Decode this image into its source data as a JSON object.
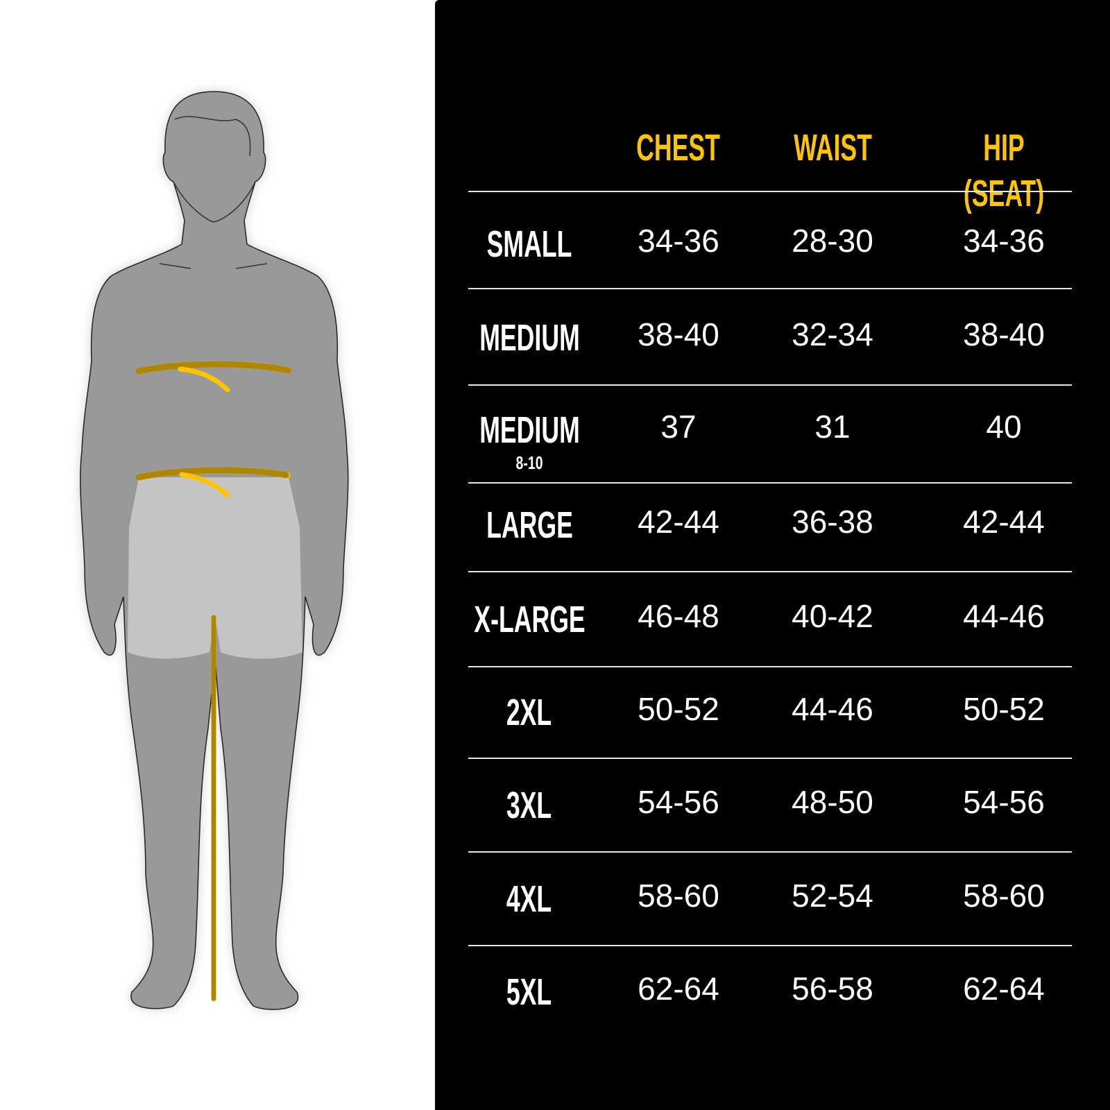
{
  "colors": {
    "accent": "#FFC400",
    "panel": "#000000",
    "silhouette": "#999999",
    "shorts": "#c4c4c4"
  },
  "figure": {
    "icon": "body-silhouette-with-measuring-tapes"
  },
  "table": {
    "headers": [
      "CHEST",
      "WAIST",
      "HIP (SEAT)"
    ],
    "rows": [
      {
        "size": "SMALL",
        "sub": "",
        "chest": "34-36",
        "waist": "28-30",
        "hip": "34-36"
      },
      {
        "size": "MEDIUM",
        "sub": "",
        "chest": "38-40",
        "waist": "32-34",
        "hip": "38-40"
      },
      {
        "size": "MEDIUM",
        "sub": "8-10",
        "chest": "37",
        "waist": "31",
        "hip": "40"
      },
      {
        "size": "LARGE",
        "sub": "",
        "chest": "42-44",
        "waist": "36-38",
        "hip": "42-44"
      },
      {
        "size": "X-LARGE",
        "sub": "",
        "chest": "46-48",
        "waist": "40-42",
        "hip": "44-46"
      },
      {
        "size": "2XL",
        "sub": "",
        "chest": "50-52",
        "waist": "44-46",
        "hip": "50-52"
      },
      {
        "size": "3XL",
        "sub": "",
        "chest": "54-56",
        "waist": "48-50",
        "hip": "54-56"
      },
      {
        "size": "4XL",
        "sub": "",
        "chest": "58-60",
        "waist": "52-54",
        "hip": "58-60"
      },
      {
        "size": "5XL",
        "sub": "",
        "chest": "62-64",
        "waist": "56-58",
        "hip": "62-64"
      }
    ]
  }
}
